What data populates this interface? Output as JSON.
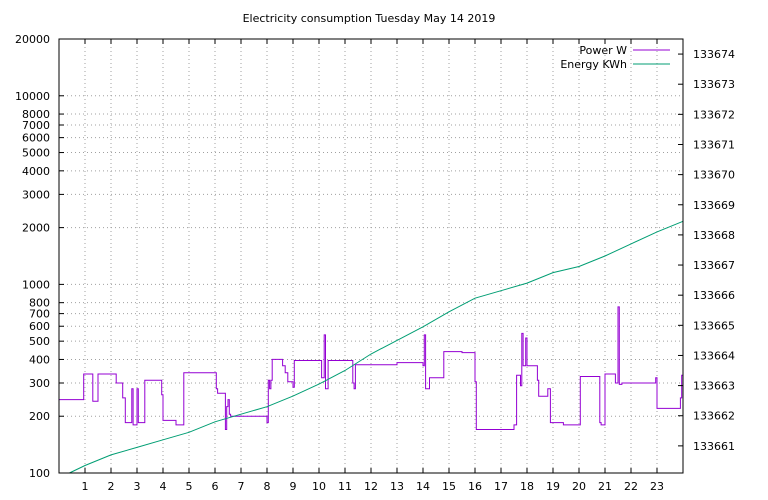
{
  "chart_data": {
    "type": "line",
    "title": "Electricity consumption Tuesday May 14 2019",
    "x_range": [
      0,
      24
    ],
    "x_ticks": [
      1,
      2,
      3,
      4,
      5,
      6,
      7,
      8,
      9,
      10,
      11,
      12,
      13,
      14,
      15,
      16,
      17,
      18,
      19,
      20,
      21,
      22,
      23
    ],
    "y_left": {
      "scale": "log",
      "range": [
        100,
        20000
      ],
      "ticks": [
        100,
        200,
        300,
        400,
        500,
        600,
        700,
        800,
        1000,
        2000,
        3000,
        4000,
        5000,
        6000,
        7000,
        8000,
        10000,
        20000
      ],
      "gridlines": [
        200,
        300,
        400,
        500,
        600,
        700,
        800,
        1000,
        2000,
        3000,
        4000,
        5000,
        6000,
        7000,
        8000,
        10000
      ]
    },
    "y_right": {
      "scale": "linear",
      "range": [
        133660.1,
        133674.5
      ],
      "ticks": [
        133661,
        133662,
        133663,
        133664,
        133665,
        133666,
        133667,
        133668,
        133669,
        133670,
        133671,
        133672,
        133673,
        133674
      ]
    },
    "grid": true,
    "legend_position": "top-right",
    "series": [
      {
        "name": "Power W",
        "axis": "left",
        "color": "#9400d3",
        "points": [
          [
            0,
            245
          ],
          [
            0.95,
            245
          ],
          [
            0.95,
            335
          ],
          [
            1.3,
            335
          ],
          [
            1.3,
            240
          ],
          [
            1.5,
            240
          ],
          [
            1.5,
            335
          ],
          [
            2.2,
            335
          ],
          [
            2.2,
            300
          ],
          [
            2.45,
            300
          ],
          [
            2.45,
            250
          ],
          [
            2.55,
            250
          ],
          [
            2.55,
            185
          ],
          [
            2.8,
            185
          ],
          [
            2.8,
            280
          ],
          [
            2.85,
            280
          ],
          [
            2.85,
            180
          ],
          [
            3,
            180
          ],
          [
            3,
            280
          ],
          [
            3.05,
            280
          ],
          [
            3.05,
            185
          ],
          [
            3.3,
            185
          ],
          [
            3.3,
            310
          ],
          [
            3.95,
            310
          ],
          [
            3.95,
            260
          ],
          [
            4,
            260
          ],
          [
            4,
            190
          ],
          [
            4.5,
            190
          ],
          [
            4.5,
            180
          ],
          [
            4.8,
            180
          ],
          [
            4.8,
            340
          ],
          [
            6.05,
            340
          ],
          [
            6.05,
            280
          ],
          [
            6.1,
            280
          ],
          [
            6.1,
            265
          ],
          [
            6.4,
            265
          ],
          [
            6.4,
            170
          ],
          [
            6.45,
            170
          ],
          [
            6.45,
            225
          ],
          [
            6.5,
            225
          ],
          [
            6.5,
            245
          ],
          [
            6.55,
            245
          ],
          [
            6.55,
            205
          ],
          [
            6.6,
            205
          ],
          [
            6.6,
            200
          ],
          [
            8,
            200
          ],
          [
            8,
            185
          ],
          [
            8.05,
            185
          ],
          [
            8.05,
            310
          ],
          [
            8.1,
            310
          ],
          [
            8.1,
            280
          ],
          [
            8.15,
            280
          ],
          [
            8.15,
            310
          ],
          [
            8.2,
            310
          ],
          [
            8.2,
            400
          ],
          [
            8.6,
            400
          ],
          [
            8.6,
            370
          ],
          [
            8.7,
            370
          ],
          [
            8.7,
            340
          ],
          [
            8.8,
            340
          ],
          [
            8.8,
            305
          ],
          [
            9,
            305
          ],
          [
            9,
            285
          ],
          [
            9.05,
            285
          ],
          [
            9.05,
            395
          ],
          [
            10.1,
            395
          ],
          [
            10.1,
            320
          ],
          [
            10.2,
            320
          ],
          [
            10.2,
            540
          ],
          [
            10.25,
            540
          ],
          [
            10.25,
            280
          ],
          [
            10.35,
            280
          ],
          [
            10.35,
            395
          ],
          [
            11.3,
            395
          ],
          [
            11.3,
            300
          ],
          [
            11.35,
            300
          ],
          [
            11.35,
            280
          ],
          [
            11.4,
            280
          ],
          [
            11.4,
            375
          ],
          [
            13,
            375
          ],
          [
            13,
            385
          ],
          [
            14,
            385
          ],
          [
            14,
            370
          ],
          [
            14.05,
            370
          ],
          [
            14.05,
            540
          ],
          [
            14.1,
            540
          ],
          [
            14.1,
            280
          ],
          [
            14.25,
            280
          ],
          [
            14.25,
            320
          ],
          [
            14.8,
            320
          ],
          [
            14.8,
            440
          ],
          [
            15.5,
            440
          ],
          [
            15.5,
            435
          ],
          [
            16,
            435
          ],
          [
            16,
            305
          ],
          [
            16.05,
            305
          ],
          [
            16.05,
            170
          ],
          [
            17.5,
            170
          ],
          [
            17.5,
            180
          ],
          [
            17.6,
            180
          ],
          [
            17.6,
            330
          ],
          [
            17.75,
            330
          ],
          [
            17.75,
            290
          ],
          [
            17.8,
            290
          ],
          [
            17.8,
            550
          ],
          [
            17.85,
            550
          ],
          [
            17.85,
            370
          ],
          [
            17.95,
            370
          ],
          [
            17.95,
            520
          ],
          [
            18,
            520
          ],
          [
            18,
            370
          ],
          [
            18.4,
            370
          ],
          [
            18.4,
            310
          ],
          [
            18.45,
            310
          ],
          [
            18.45,
            255
          ],
          [
            18.8,
            255
          ],
          [
            18.8,
            280
          ],
          [
            18.9,
            280
          ],
          [
            18.9,
            185
          ],
          [
            19.4,
            185
          ],
          [
            19.4,
            180
          ],
          [
            20.05,
            180
          ],
          [
            20.05,
            325
          ],
          [
            20.8,
            325
          ],
          [
            20.8,
            185
          ],
          [
            20.85,
            185
          ],
          [
            20.85,
            180
          ],
          [
            21,
            180
          ],
          [
            21,
            335
          ],
          [
            21.4,
            335
          ],
          [
            21.4,
            300
          ],
          [
            21.5,
            300
          ],
          [
            21.5,
            760
          ],
          [
            21.55,
            760
          ],
          [
            21.55,
            295
          ],
          [
            21.65,
            295
          ],
          [
            21.65,
            300
          ],
          [
            22.95,
            300
          ],
          [
            22.95,
            320
          ],
          [
            23,
            320
          ],
          [
            23,
            220
          ],
          [
            23.9,
            220
          ],
          [
            23.9,
            250
          ],
          [
            23.95,
            250
          ],
          [
            23.95,
            330
          ],
          [
            24,
            330
          ]
        ]
      },
      {
        "name": "Energy KWh",
        "axis": "right",
        "color": "#009e73",
        "points": [
          [
            0.4,
            133660.1
          ],
          [
            1,
            133660.35
          ],
          [
            2,
            133660.7
          ],
          [
            3,
            133660.95
          ],
          [
            4,
            133661.2
          ],
          [
            5,
            133661.45
          ],
          [
            6,
            133661.8
          ],
          [
            7,
            133662.05
          ],
          [
            8,
            133662.3
          ],
          [
            9,
            133662.65
          ],
          [
            10,
            133663.05
          ],
          [
            11,
            133663.5
          ],
          [
            12,
            133664.05
          ],
          [
            13,
            133664.5
          ],
          [
            14,
            133664.95
          ],
          [
            15,
            133665.45
          ],
          [
            16,
            133665.9
          ],
          [
            17,
            133666.15
          ],
          [
            18,
            133666.4
          ],
          [
            19,
            133666.75
          ],
          [
            20,
            133666.95
          ],
          [
            21,
            133667.3
          ],
          [
            22,
            133667.7
          ],
          [
            23,
            133668.1
          ],
          [
            24,
            133668.45
          ]
        ]
      }
    ]
  }
}
